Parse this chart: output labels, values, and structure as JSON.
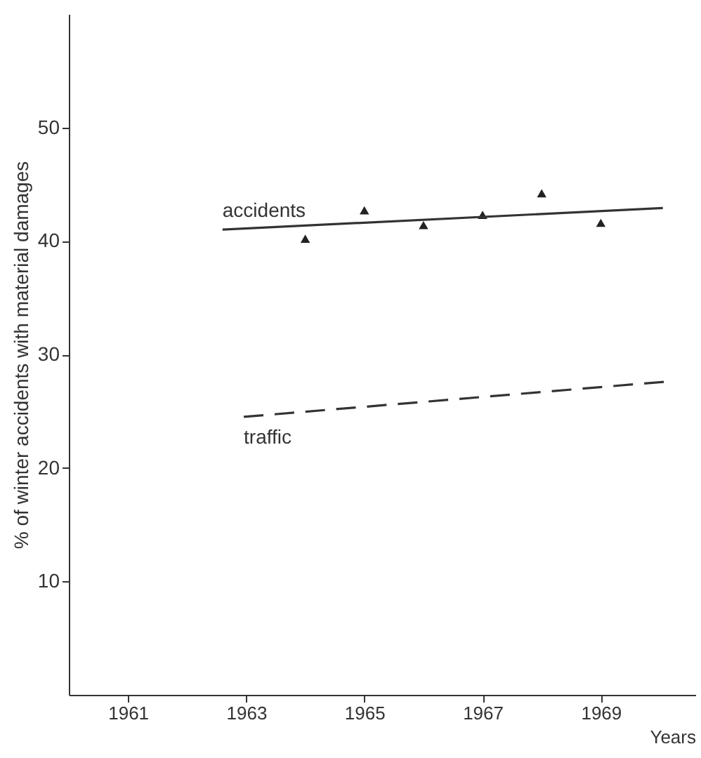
{
  "chart_data": {
    "type": "line",
    "xlabel": "Years",
    "ylabel": "% of winter accidents with material damages",
    "xlim": [
      1960,
      1970.6
    ],
    "xticks": [
      1961,
      1963,
      1965,
      1967,
      1969
    ],
    "ylim": [
      0,
      60
    ],
    "yticks": [
      10,
      20,
      30,
      40,
      50
    ],
    "grid": false,
    "series": [
      {
        "type": "scatter",
        "color": "#222222",
        "marker": "triangle",
        "x": [
          1964,
          1965,
          1966,
          1967,
          1968,
          1969
        ],
        "values": [
          40.2,
          42.7,
          41.4,
          42.3,
          44.2,
          41.6
        ]
      },
      {
        "name": "accidents",
        "color": "#333333",
        "line_style": "solid",
        "marker": "none",
        "x": [
          1962.6,
          1970.05
        ],
        "values": [
          41.0,
          42.9
        ]
      },
      {
        "name": "traffic",
        "color": "#333333",
        "line_style": "dashed",
        "marker": "none",
        "x": [
          1962.96,
          1970.1
        ],
        "values": [
          24.5,
          27.6
        ]
      }
    ]
  }
}
